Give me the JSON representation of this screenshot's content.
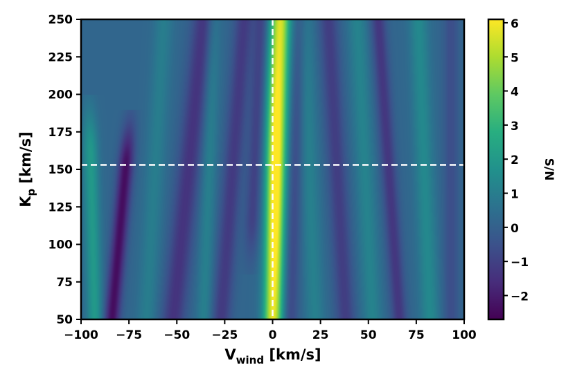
{
  "chart_data": {
    "type": "heatmap",
    "title": "",
    "xlabel": {
      "main": "V",
      "sub": "wind",
      "unit": " [km/s]"
    },
    "ylabel": {
      "main": "K",
      "sub": "p",
      "unit": " [km/s]"
    },
    "xlim": [
      -100,
      100
    ],
    "ylim": [
      50,
      250
    ],
    "x_ticks": [
      -100,
      -75,
      -50,
      -25,
      0,
      25,
      50,
      75,
      100
    ],
    "x_tick_labels": [
      "−100",
      "−75",
      "−50",
      "−25",
      "0",
      "25",
      "50",
      "75",
      "100"
    ],
    "y_ticks": [
      50,
      75,
      100,
      125,
      150,
      175,
      200,
      225,
      250
    ],
    "y_tick_labels": [
      "50",
      "75",
      "100",
      "125",
      "150",
      "175",
      "200",
      "225",
      "250"
    ],
    "colormap": "viridis",
    "colorbar": {
      "label": "S/N",
      "range": [
        -2.7,
        6.1
      ],
      "ticks": [
        -2,
        -1,
        0,
        1,
        2,
        3,
        4,
        5,
        6
      ],
      "tick_labels": [
        "−2",
        "−1",
        "0",
        "1",
        "2",
        "3",
        "4",
        "5",
        "6"
      ]
    },
    "peak": {
      "v_wind": 0,
      "K_p": 153,
      "sn": 6.0
    },
    "guide_lines": {
      "vertical_x": 0,
      "horizontal_y": 153,
      "style": "dashed",
      "color": "#ffffff"
    },
    "features": [
      {
        "v": -82,
        "kp_at_50": -84,
        "slope": 0.06,
        "amp": -2.6,
        "width": 4,
        "kp_range": [
          50,
          150
        ]
      },
      {
        "v": -93,
        "kp_at_50": -93,
        "slope": -0.02,
        "amp": 1.8,
        "width": 4,
        "kp_range": [
          50,
          160
        ]
      },
      {
        "v": -48,
        "kp_at_50": -52,
        "slope": 0.06,
        "amp": -1.6,
        "width": 6,
        "kp_range": [
          50,
          250
        ]
      },
      {
        "v": -65,
        "kp_at_50": -66,
        "slope": 0.04,
        "amp": 0.8,
        "width": 5,
        "kp_range": [
          50,
          250
        ]
      },
      {
        "v": -25,
        "kp_at_50": -27,
        "slope": 0.05,
        "amp": -1.4,
        "width": 5,
        "kp_range": [
          50,
          250
        ]
      },
      {
        "v": -35,
        "kp_at_50": -36,
        "slope": 0.02,
        "amp": 0.9,
        "width": 4,
        "kp_range": [
          50,
          250
        ]
      },
      {
        "v": -12,
        "kp_at_50": -13,
        "slope": 0.03,
        "amp": -1.2,
        "width": 4,
        "kp_range": [
          120,
          250
        ]
      },
      {
        "v": 2,
        "kp_at_50": 0,
        "slope": 0.01,
        "amp": 5.2,
        "width": 5,
        "kp_range": [
          50,
          250
        ]
      },
      {
        "v": 10,
        "kp_at_50": 9,
        "slope": 0.02,
        "amp": -1.0,
        "width": 4,
        "kp_range": [
          50,
          250
        ]
      },
      {
        "v": 20,
        "kp_at_50": 22,
        "slope": -0.02,
        "amp": 0.9,
        "width": 5,
        "kp_range": [
          50,
          250
        ]
      },
      {
        "v": 35,
        "kp_at_50": 38,
        "slope": -0.03,
        "amp": -1.3,
        "width": 5,
        "kp_range": [
          50,
          250
        ]
      },
      {
        "v": 50,
        "kp_at_50": 52,
        "slope": -0.03,
        "amp": 1.0,
        "width": 5,
        "kp_range": [
          50,
          250
        ]
      },
      {
        "v": 63,
        "kp_at_50": 66,
        "slope": -0.04,
        "amp": -1.5,
        "width": 4,
        "kp_range": [
          50,
          250
        ]
      },
      {
        "v": 80,
        "kp_at_50": 82,
        "slope": -0.02,
        "amp": 1.2,
        "width": 5,
        "kp_range": [
          50,
          250
        ]
      },
      {
        "v": 93,
        "kp_at_50": 93,
        "slope": 0.0,
        "amp": -0.8,
        "width": 4,
        "kp_range": [
          50,
          250
        ]
      }
    ]
  }
}
